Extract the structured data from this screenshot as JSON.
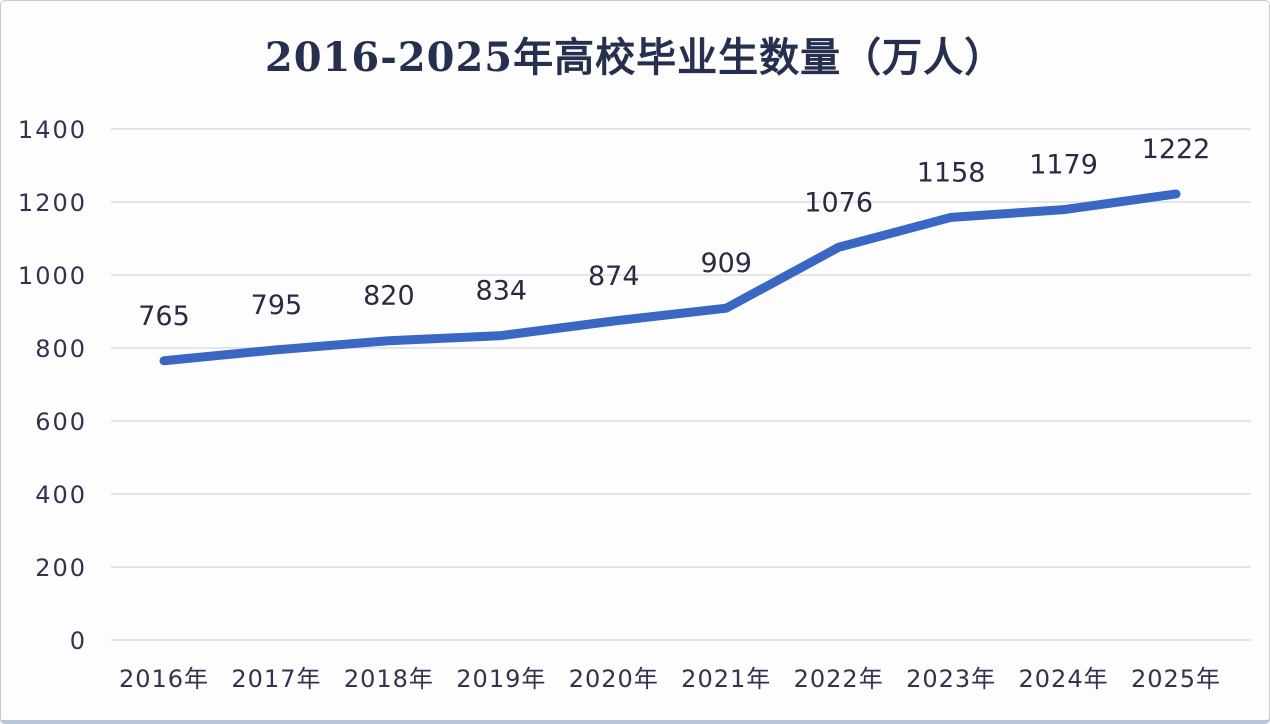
{
  "page": {
    "background": "#fdfdfe",
    "border_color": "#c9c9ce",
    "bottom_border_color": "#b9c5d8"
  },
  "chart_data": {
    "type": "line",
    "title": "2016-2025年高校毕业生数量（万人）",
    "categories": [
      "2016年",
      "2017年",
      "2018年",
      "2019年",
      "2020年",
      "2021年",
      "2022年",
      "2023年",
      "2024年",
      "2025年"
    ],
    "values": [
      765,
      795,
      820,
      834,
      874,
      909,
      1076,
      1158,
      1179,
      1222
    ],
    "xlabel": "",
    "ylabel": "",
    "ylim": [
      0,
      1400
    ],
    "yticks": [
      0,
      200,
      400,
      600,
      800,
      1000,
      1200,
      1400
    ],
    "grid": true,
    "legend_position": "none",
    "data_labels_visible": true,
    "line_color": "#3a66c4",
    "text_color": "#38304f",
    "data_label_color": "#2e2843",
    "title_color": "#26304e",
    "grid_color": "#e4e4e9"
  }
}
